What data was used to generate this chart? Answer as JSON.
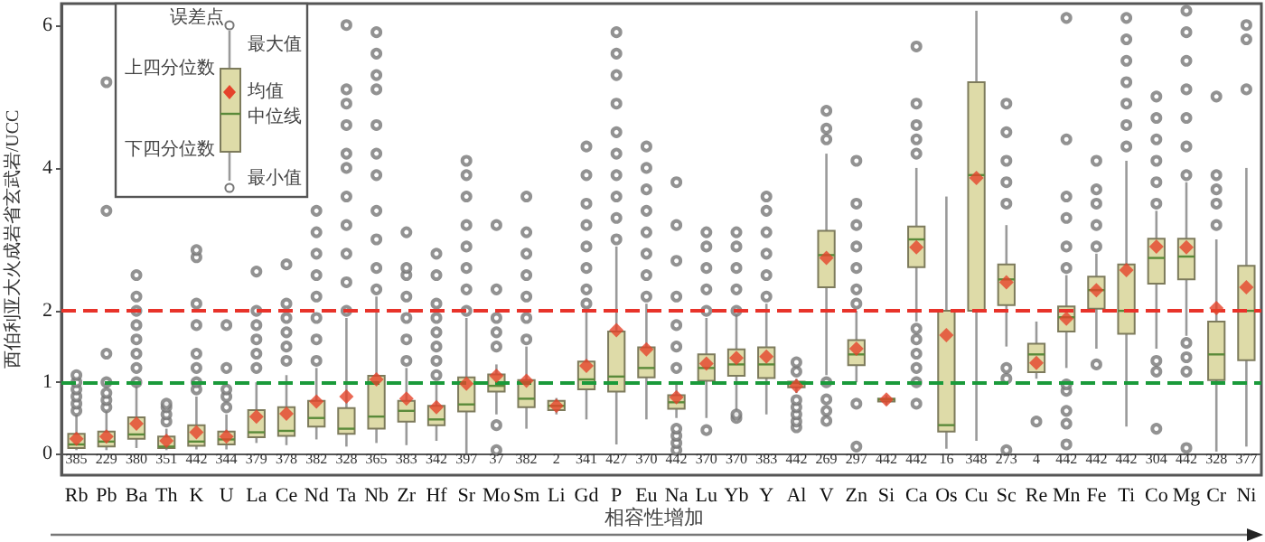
{
  "chart_data": {
    "type": "box",
    "ylabel": "西伯利亚大火成岩省玄武岩/UCC",
    "xlabel": "相容性增加",
    "categories": [
      "Rb",
      "Pb",
      "Ba",
      "Th",
      "K",
      "U",
      "La",
      "Ce",
      "Nd",
      "Ta",
      "Nb",
      "Zr",
      "Hf",
      "Sr",
      "Mo",
      "Sm",
      "Li",
      "Gd",
      "P",
      "Eu",
      "Na",
      "Lu",
      "Yb",
      "Y",
      "Al",
      "V",
      "Zn",
      "Si",
      "Ca",
      "Os",
      "Cu",
      "Sc",
      "Re",
      "Mn",
      "Fe",
      "Ti",
      "Co",
      "Mg",
      "Cr",
      "Ni"
    ],
    "ylim": [
      -0.3,
      6.3
    ],
    "yticks": [
      0,
      1,
      2,
      4,
      6
    ],
    "series": [
      {
        "color": "#dedba8",
        "boxes": [
          {
            "low": 0.05,
            "q1": 0.08,
            "median": 0.13,
            "q3": 0.28,
            "high": 0.55,
            "mean": 0.21,
            "outliers": [
              0.6,
              0.7,
              0.8,
              0.9,
              1.0,
              1.1
            ]
          },
          {
            "low": 0.05,
            "q1": 0.1,
            "median": 0.17,
            "q3": 0.31,
            "high": 0.6,
            "mean": 0.24,
            "outliers": [
              0.65,
              0.75,
              0.85,
              1.0,
              1.4,
              3.4,
              5.2
            ]
          },
          {
            "low": 0.08,
            "q1": 0.21,
            "median": 0.27,
            "q3": 0.51,
            "high": 0.95,
            "mean": 0.42,
            "outliers": [
              1.0,
              1.2,
              1.4,
              1.6,
              1.8,
              2.0,
              2.2,
              2.5
            ]
          },
          {
            "low": 0.05,
            "q1": 0.08,
            "median": 0.1,
            "q3": 0.24,
            "high": 0.35,
            "mean": 0.18,
            "outliers": [
              0.45,
              0.55,
              0.65,
              0.7
            ]
          },
          {
            "low": 0.06,
            "q1": 0.11,
            "median": 0.17,
            "q3": 0.4,
            "high": 0.8,
            "mean": 0.3,
            "outliers": [
              0.9,
              1.0,
              1.2,
              1.4,
              1.8,
              2.1,
              2.75,
              2.85
            ]
          },
          {
            "low": 0.06,
            "q1": 0.13,
            "median": 0.2,
            "q3": 0.31,
            "high": 0.55,
            "mean": 0.24,
            "outliers": [
              0.65,
              0.8,
              0.9,
              1.2,
              1.8
            ]
          },
          {
            "low": 0.15,
            "q1": 0.23,
            "median": 0.3,
            "q3": 0.61,
            "high": 1.0,
            "mean": 0.52,
            "outliers": [
              1.2,
              1.4,
              1.6,
              1.8,
              2.0,
              2.55
            ]
          },
          {
            "low": 0.12,
            "q1": 0.25,
            "median": 0.32,
            "q3": 0.65,
            "high": 1.1,
            "mean": 0.56,
            "outliers": [
              1.3,
              1.5,
              1.7,
              1.9,
              2.1,
              2.65
            ]
          },
          {
            "low": 0.2,
            "q1": 0.38,
            "median": 0.5,
            "q3": 0.74,
            "high": 1.2,
            "mean": 0.73,
            "outliers": [
              1.3,
              1.6,
              1.9,
              2.2,
              2.5,
              2.8,
              3.1,
              3.4
            ]
          },
          {
            "low": 0.1,
            "q1": 0.28,
            "median": 0.35,
            "q3": 0.64,
            "high": 1.9,
            "mean": 0.8,
            "outliers": [
              2.0,
              2.4,
              2.8,
              3.2,
              3.6,
              4.0,
              4.2,
              4.6,
              4.9,
              5.1,
              6.0
            ]
          },
          {
            "low": 0.15,
            "q1": 0.35,
            "median": 0.52,
            "q3": 1.09,
            "high": 2.2,
            "mean": 1.04,
            "outliers": [
              2.3,
              2.6,
              3.0,
              3.4,
              3.9,
              4.2,
              4.6,
              5.1,
              5.3,
              5.6,
              5.9
            ]
          },
          {
            "low": 0.12,
            "q1": 0.45,
            "median": 0.6,
            "q3": 0.74,
            "high": 1.2,
            "mean": 0.77,
            "outliers": [
              1.3,
              1.6,
              1.9,
              2.2,
              2.5,
              2.6,
              3.1
            ]
          },
          {
            "low": 0.18,
            "q1": 0.4,
            "median": 0.48,
            "q3": 0.67,
            "high": 1.0,
            "mean": 0.65,
            "outliers": [
              1.1,
              1.3,
              1.5,
              1.7,
              1.9,
              2.1,
              2.5,
              2.8
            ]
          },
          {
            "low": 0.0,
            "q1": 0.59,
            "median": 0.69,
            "q3": 1.07,
            "high": 1.9,
            "mean": 0.98,
            "outliers": [
              2.0,
              2.3,
              2.6,
              2.9,
              3.2,
              3.6,
              3.9,
              4.1
            ]
          },
          {
            "low": 0.55,
            "q1": 0.87,
            "median": 0.95,
            "q3": 1.11,
            "high": 1.25,
            "mean": 1.09,
            "outliers": [
              0.05,
              0.4,
              1.5,
              1.7,
              1.9,
              2.3,
              3.2
            ]
          },
          {
            "low": 0.35,
            "q1": 0.65,
            "median": 0.77,
            "q3": 1.03,
            "high": 1.5,
            "mean": 1.02,
            "outliers": [
              1.6,
              1.9,
              2.2,
              2.5,
              2.8,
              3.1,
              3.6
            ]
          },
          {
            "low": 0.55,
            "q1": 0.61,
            "median": 0.67,
            "q3": 0.74,
            "high": 0.78,
            "mean": 0.67
          },
          {
            "low": 0.48,
            "q1": 0.9,
            "median": 1.04,
            "q3": 1.29,
            "high": 2.0,
            "mean": 1.23,
            "outliers": [
              2.1,
              2.3,
              2.6,
              2.9,
              3.2,
              3.5,
              3.9,
              4.3
            ]
          },
          {
            "low": 0.13,
            "q1": 0.87,
            "median": 1.08,
            "q3": 1.71,
            "high": 2.9,
            "mean": 1.73,
            "outliers": [
              3.0,
              3.3,
              3.6,
              3.9,
              4.2,
              4.5,
              4.9,
              5.3,
              5.6,
              5.9
            ]
          },
          {
            "low": 0.48,
            "q1": 1.07,
            "median": 1.2,
            "q3": 1.49,
            "high": 2.1,
            "mean": 1.46,
            "outliers": [
              2.2,
              2.5,
              2.8,
              3.1,
              3.4,
              3.7,
              4.0,
              4.3
            ]
          },
          {
            "low": 0.5,
            "q1": 0.63,
            "median": 0.72,
            "q3": 0.82,
            "high": 1.0,
            "mean": 0.79,
            "outliers": [
              0.05,
              0.15,
              0.25,
              0.35,
              1.2,
              1.5,
              1.8,
              2.2,
              2.7,
              3.2,
              3.8
            ]
          },
          {
            "low": 0.5,
            "q1": 1.02,
            "median": 1.2,
            "q3": 1.39,
            "high": 1.9,
            "mean": 1.26,
            "outliers": [
              0.33,
              2.0,
              2.3,
              2.6,
              2.9,
              3.1
            ]
          },
          {
            "low": 0.6,
            "q1": 1.09,
            "median": 1.25,
            "q3": 1.46,
            "high": 1.95,
            "mean": 1.34,
            "outliers": [
              0.5,
              0.55,
              2.0,
              2.3,
              2.6,
              2.9,
              3.1
            ]
          },
          {
            "low": 0.55,
            "q1": 1.06,
            "median": 1.25,
            "q3": 1.49,
            "high": 2.1,
            "mean": 1.36,
            "outliers": [
              2.2,
              2.5,
              2.8,
              3.1,
              3.4,
              3.6
            ]
          },
          {
            "low": 0.85,
            "q1": 0.93,
            "median": 0.99,
            "q3": 1.01,
            "high": 1.05,
            "mean": 0.95,
            "outliers": [
              0.37,
              0.45,
              0.55,
              0.65,
              0.75,
              1.15,
              1.28
            ]
          },
          {
            "low": 1.1,
            "q1": 2.33,
            "median": 2.78,
            "q3": 3.12,
            "high": 4.2,
            "mean": 2.74,
            "outliers": [
              0.46,
              0.6,
              0.76,
              1.0,
              4.4,
              4.55,
              4.8
            ]
          },
          {
            "low": 1.0,
            "q1": 1.24,
            "median": 1.39,
            "q3": 1.59,
            "high": 2.0,
            "mean": 1.47,
            "outliers": [
              0.1,
              0.7,
              2.1,
              2.3,
              2.6,
              2.9,
              3.2,
              3.5,
              4.1
            ]
          },
          {
            "low": 0.68,
            "q1": 0.73,
            "median": 0.76,
            "q3": 0.77,
            "high": 0.82,
            "mean": 0.76
          },
          {
            "low": 1.85,
            "q1": 2.61,
            "median": 3.0,
            "q3": 3.18,
            "high": 4.0,
            "mean": 2.89,
            "outliers": [
              0.7,
              1.0,
              1.2,
              1.4,
              1.6,
              1.75,
              4.2,
              4.4,
              4.6,
              4.9,
              5.7
            ]
          },
          {
            "low": 0.07,
            "q1": 0.31,
            "median": 0.4,
            "q3": 2.0,
            "high": 3.6,
            "mean": 1.66
          },
          {
            "low": 0.18,
            "q1": 2.0,
            "median": 3.9,
            "q3": 5.2,
            "high": 6.2,
            "mean": 3.86
          },
          {
            "low": 1.5,
            "q1": 2.08,
            "median": 2.44,
            "q3": 2.65,
            "high": 3.2,
            "mean": 2.4,
            "outliers": [
              0.05,
              1.05,
              1.2,
              3.5,
              3.8,
              4.1,
              4.5,
              4.9
            ]
          },
          {
            "low": 1.05,
            "q1": 1.14,
            "median": 1.39,
            "q3": 1.54,
            "high": 1.85,
            "mean": 1.27,
            "outliers": [
              0.45
            ]
          },
          {
            "low": 1.2,
            "q1": 1.71,
            "median": 1.91,
            "q3": 2.06,
            "high": 2.5,
            "mean": 1.89,
            "outliers": [
              0.13,
              0.42,
              0.6,
              0.88,
              0.97,
              2.6,
              2.9,
              3.3,
              3.6,
              4.4,
              6.1
            ]
          },
          {
            "low": 1.47,
            "q1": 2.03,
            "median": 2.29,
            "q3": 2.48,
            "high": 2.8,
            "mean": 2.29,
            "outliers": [
              1.25,
              2.9,
              3.2,
              3.5,
              3.7,
              4.1
            ]
          },
          {
            "low": 0.38,
            "q1": 1.68,
            "median": 2.0,
            "q3": 2.65,
            "high": 4.1,
            "mean": 2.57,
            "outliers": [
              4.3,
              4.6,
              4.9,
              5.2,
              5.5,
              5.8,
              6.1
            ]
          },
          {
            "low": 1.47,
            "q1": 2.38,
            "median": 2.74,
            "q3": 3.01,
            "high": 3.4,
            "mean": 2.9,
            "outliers": [
              0.35,
              1.15,
              1.3,
              3.5,
              3.8,
              4.1,
              4.4,
              4.7,
              5.0
            ]
          },
          {
            "low": 1.65,
            "q1": 2.44,
            "median": 2.76,
            "q3": 3.01,
            "high": 3.8,
            "mean": 2.89,
            "outliers": [
              0.08,
              1.15,
              1.35,
              1.55,
              3.9,
              4.3,
              4.7,
              5.1,
              5.5,
              5.9,
              6.2
            ]
          },
          {
            "low": 0.03,
            "q1": 1.03,
            "median": 1.39,
            "q3": 1.85,
            "high": 3.0,
            "mean": 2.04,
            "outliers": [
              3.2,
              3.5,
              3.7,
              3.9,
              5.0
            ]
          },
          {
            "low": 0.1,
            "q1": 1.31,
            "median": 2.0,
            "q3": 2.63,
            "high": 4.0,
            "mean": 2.33,
            "outliers": [
              5.1,
              5.8,
              6.0
            ]
          }
        ]
      }
    ],
    "ref_lines": [
      {
        "axis": "y",
        "value": 2,
        "color": "#e8332a",
        "line_style": "dashed"
      },
      {
        "axis": "y",
        "value": 1,
        "color": "#1a9a3a",
        "line_style": "dashed"
      }
    ],
    "annotations": [
      "误差点",
      "最大值",
      "上四分位数",
      "均值",
      "中位线",
      "下四分位数",
      "最小值",
      "385",
      "229",
      "380",
      "351",
      "442",
      "344",
      "379",
      "378",
      "382",
      "328",
      "365",
      "383",
      "342",
      "397",
      "37",
      "382",
      "2",
      "341",
      "427",
      "370",
      "442",
      "370",
      "370",
      "383",
      "442",
      "269",
      "297",
      "442",
      "442",
      "16",
      "348",
      "273",
      "4",
      "442",
      "442",
      "442",
      "304",
      "442",
      "328",
      "377"
    ]
  }
}
